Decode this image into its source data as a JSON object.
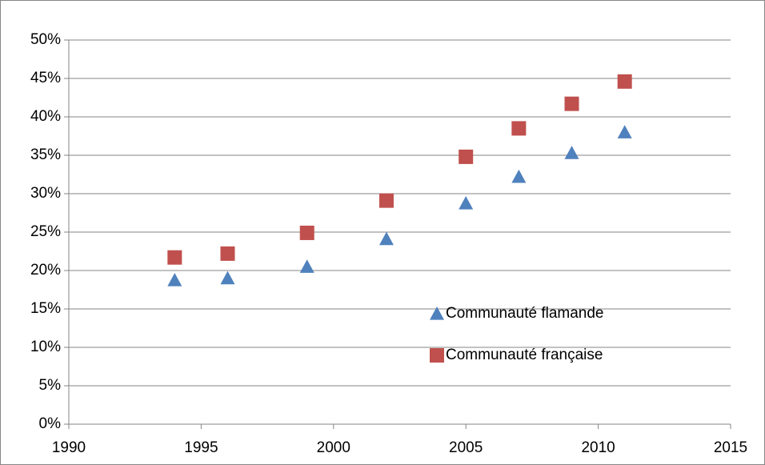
{
  "chart_data": {
    "type": "scatter",
    "xlim": [
      1990,
      2015
    ],
    "xticks": [
      1990,
      1995,
      2000,
      2005,
      2010,
      2015
    ],
    "ylim": [
      0,
      50
    ],
    "yticks": [
      {
        "value": 0,
        "label": "0%"
      },
      {
        "value": 5,
        "label": "5%"
      },
      {
        "value": 10,
        "label": "10%"
      },
      {
        "value": 15,
        "label": "15%"
      },
      {
        "value": 20,
        "label": "20%"
      },
      {
        "value": 25,
        "label": "25%"
      },
      {
        "value": 30,
        "label": "30%"
      },
      {
        "value": 35,
        "label": "35%"
      },
      {
        "value": 40,
        "label": "40%"
      },
      {
        "value": 45,
        "label": "45%"
      },
      {
        "value": 50,
        "label": "50%"
      }
    ],
    "grid": true,
    "legend_position": "lower right",
    "series": [
      {
        "name": "Communauté flamande",
        "color": "#4f81bd",
        "marker": "triangle",
        "x": [
          1994,
          1996,
          1999,
          2002,
          2005,
          2007,
          2009,
          2011
        ],
        "values": [
          18.75,
          19.0,
          20.5,
          24.1,
          28.75,
          32.2,
          35.3,
          38.0
        ]
      },
      {
        "name": "Communauté française",
        "color": "#c0504d",
        "marker": "square",
        "x": [
          1994,
          1996,
          1999,
          2002,
          2005,
          2007,
          2009,
          2011
        ],
        "values": [
          21.7,
          22.2,
          24.9,
          29.1,
          34.8,
          38.5,
          41.7,
          44.6
        ]
      }
    ]
  }
}
